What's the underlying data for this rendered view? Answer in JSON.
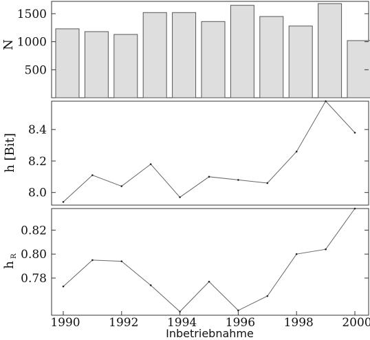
{
  "chart_data": [
    {
      "type": "bar",
      "ylabel": "N",
      "x": [
        1990,
        1991,
        1992,
        1993,
        1994,
        1995,
        1996,
        1997,
        1998,
        1999,
        2000
      ],
      "values": [
        1230,
        1180,
        1130,
        1520,
        1520,
        1360,
        1650,
        1450,
        1280,
        1680,
        1020
      ],
      "ylim": [
        0,
        1720
      ],
      "yticks": [
        500,
        1000,
        1500
      ],
      "ytick_labels": [
        "500",
        "1000",
        "1500"
      ]
    },
    {
      "type": "line",
      "ylabel": "h [Bit]",
      "x": [
        1990,
        1991,
        1992,
        1993,
        1994,
        1995,
        1996,
        1997,
        1998,
        1999,
        2000
      ],
      "values": [
        7.94,
        8.11,
        8.04,
        8.18,
        7.97,
        8.1,
        8.08,
        8.06,
        8.26,
        8.58,
        8.38
      ],
      "ylim": [
        7.92,
        8.58
      ],
      "yticks": [
        8.0,
        8.2,
        8.4
      ],
      "ytick_labels": [
        "8.0",
        "8.2",
        "8.4"
      ]
    },
    {
      "type": "line",
      "ylabel": "h",
      "ylabel_sub": "R",
      "x": [
        1990,
        1991,
        1992,
        1993,
        1994,
        1995,
        1996,
        1997,
        1998,
        1999,
        2000
      ],
      "values": [
        0.773,
        0.795,
        0.794,
        0.774,
        0.752,
        0.777,
        0.753,
        0.765,
        0.8,
        0.804,
        0.838
      ],
      "ylim": [
        0.749,
        0.838
      ],
      "yticks": [
        0.78,
        0.8,
        0.82
      ],
      "ytick_labels": [
        "0.78",
        "0.80",
        "0.82"
      ],
      "xticks": [
        1990,
        1992,
        1994,
        1996,
        1998,
        2000
      ],
      "xtick_labels": [
        "1990",
        "1992",
        "1994",
        "1996",
        "1998",
        "2000"
      ],
      "xlabel": "Inbetriebnahme"
    }
  ]
}
